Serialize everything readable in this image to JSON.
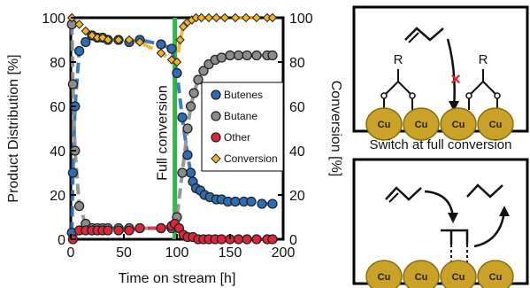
{
  "chart_data": {
    "type": "scatter",
    "xlabel": "Time on stream [h]",
    "ylabel_left": "Product Distribution [%]",
    "ylabel_right": "Conversion [%]",
    "xlim": [
      0,
      200
    ],
    "ylim": [
      0,
      100
    ],
    "xticks": [
      "0",
      "50",
      "100",
      "150",
      "200"
    ],
    "yticks": [
      "0",
      "20",
      "40",
      "60",
      "80",
      "100"
    ],
    "legend_position": "right",
    "annotation": "Full conversion",
    "annotation_x": 98,
    "series": [
      {
        "name": "Butenes",
        "color": "#2e6db4",
        "marker": "circle",
        "x": [
          1,
          2,
          4,
          8,
          14,
          20,
          25,
          30,
          35,
          45,
          55,
          65,
          85,
          95,
          100,
          105,
          110,
          113,
          115,
          118,
          122,
          126,
          131,
          137,
          142,
          148,
          155,
          163,
          170,
          180,
          190
        ],
        "y": [
          3,
          30,
          60,
          85,
          89,
          92,
          91,
          91,
          90,
          90,
          89,
          90,
          88,
          86,
          75,
          55,
          38,
          30,
          26,
          23,
          22,
          20,
          19,
          18,
          18,
          17,
          17,
          17,
          17,
          16,
          16
        ]
      },
      {
        "name": "Butane",
        "color": "#8c8c8c",
        "marker": "circle",
        "x": [
          1,
          2,
          4,
          8,
          14,
          20,
          25,
          30,
          35,
          45,
          55,
          65,
          85,
          95,
          100,
          105,
          110,
          113,
          116,
          120,
          125,
          130,
          136,
          142,
          150,
          158,
          166,
          175,
          185,
          190
        ],
        "y": [
          97,
          70,
          40,
          15,
          7,
          5,
          5,
          5,
          5,
          5,
          5,
          5,
          5,
          5,
          10,
          30,
          50,
          60,
          66,
          72,
          76,
          79,
          81,
          82,
          83,
          83,
          83,
          83,
          83,
          83
        ]
      },
      {
        "name": "Other",
        "color": "#d8283a",
        "marker": "circle",
        "x": [
          2,
          8,
          14,
          20,
          25,
          30,
          35,
          45,
          55,
          65,
          85,
          95,
          98,
          102,
          106,
          110,
          115,
          120,
          125,
          130,
          136,
          142,
          150,
          158,
          166,
          175,
          185,
          190
        ],
        "y": [
          0,
          4,
          4,
          4,
          4,
          4,
          4,
          4,
          4,
          5,
          5,
          6,
          7,
          5,
          2,
          1,
          1,
          0,
          0,
          0,
          0,
          0,
          0,
          0,
          0,
          0,
          0,
          0
        ]
      },
      {
        "name": "Conversion",
        "color": "#f0b323",
        "marker": "diamond",
        "x": [
          1,
          8,
          14,
          20,
          25,
          30,
          35,
          45,
          55,
          65,
          85,
          95,
          100,
          103,
          106,
          110,
          114,
          118,
          123,
          130,
          137,
          145,
          155,
          165,
          175,
          185,
          190
        ],
        "y": [
          100,
          97,
          94,
          92,
          91,
          91,
          90,
          90,
          90,
          89,
          84,
          81,
          80,
          90,
          96,
          98,
          99,
          100,
          100,
          100,
          100,
          100,
          100,
          100,
          100,
          100,
          100
        ]
      }
    ]
  },
  "schematic": {
    "caption": "Switch at full conversion",
    "top_panel": {
      "r_labels": [
        "R",
        "R"
      ],
      "cu_labels": [
        "Cu",
        "Cu",
        "Cu",
        "Cu"
      ],
      "blocked_marker": "×"
    },
    "bottom_panel": {
      "cu_labels": [
        "Cu",
        "Cu",
        "Cu",
        "Cu"
      ]
    }
  }
}
